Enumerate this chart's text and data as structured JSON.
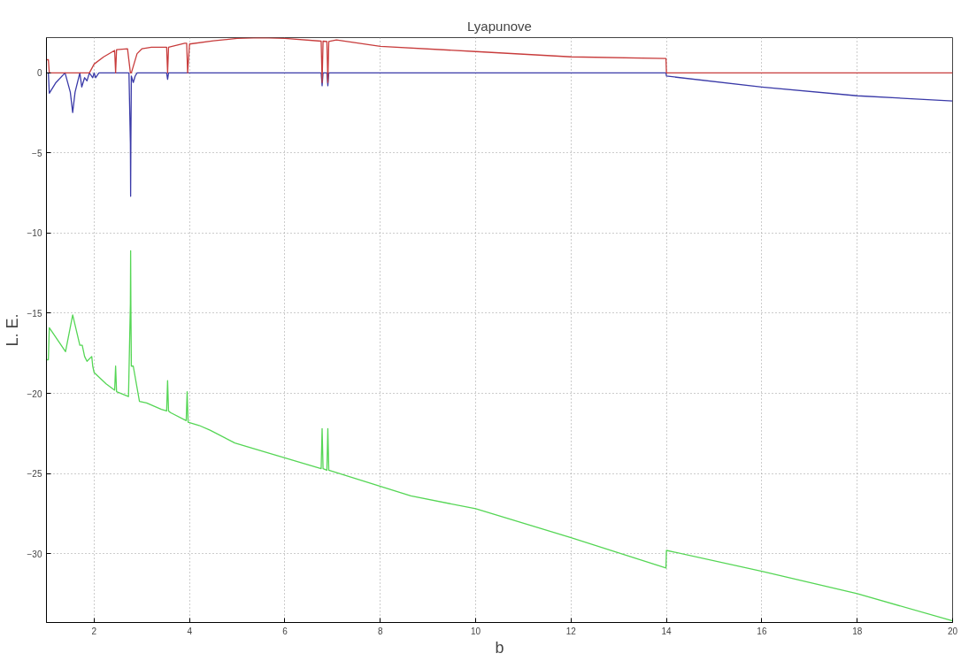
{
  "chart_data": {
    "type": "line",
    "title": "Lyapunove",
    "xlabel": "b",
    "ylabel": "L. E.",
    "xlim": [
      1,
      20
    ],
    "ylim": [
      -34.3,
      2.2
    ],
    "xticks": [
      2,
      4,
      6,
      8,
      10,
      12,
      14,
      16,
      18,
      20
    ],
    "yticks": [
      -30,
      -25,
      -20,
      -15,
      -10,
      -5,
      0
    ],
    "grid": true,
    "marker": "none",
    "line_style": "solid",
    "series": [
      {
        "color": "#3a3aa8",
        "x": [
          1,
          1.04,
          1.06,
          1.2,
          1.39,
          1.5,
          1.55,
          1.6,
          1.7,
          1.74,
          1.8,
          1.85,
          1.9,
          1.97,
          2.0,
          2.03,
          2.1,
          2.73,
          2.76,
          2.765,
          2.77,
          2.78,
          2.82,
          2.86,
          2.9,
          3.52,
          3.54,
          3.56,
          6.76,
          6.78,
          6.8,
          6.88,
          6.9,
          6.92,
          13.99,
          14.0,
          16,
          18,
          20
        ],
        "values": [
          0,
          0,
          -1.27,
          -0.6,
          0,
          -1.2,
          -2.47,
          -1.2,
          0,
          -0.88,
          -0.3,
          -0.5,
          0,
          -0.3,
          0,
          -0.3,
          0,
          0,
          -4.4,
          -7.7,
          -4.4,
          -0.2,
          -0.6,
          -0.2,
          0,
          0,
          -0.4,
          0,
          0,
          -0.8,
          0,
          0,
          -0.8,
          0,
          0,
          -0.2,
          -0.88,
          -1.43,
          -1.75
        ]
      },
      {
        "color": "#c83c3c",
        "x": [
          1,
          1.04,
          1.06,
          1.9,
          2.0,
          2.2,
          2.43,
          2.45,
          2.47,
          2.7,
          2.76,
          2.78,
          2.9,
          3.0,
          3.2,
          3.52,
          3.54,
          3.56,
          3.9,
          3.94,
          3.96,
          4.0,
          4.5,
          5.0,
          5.5,
          6.0,
          6.76,
          6.78,
          6.8,
          6.88,
          6.9,
          6.92,
          7.08,
          8,
          10,
          12,
          13.99,
          14.0,
          20
        ],
        "values": [
          0.82,
          0.82,
          0,
          0,
          0.55,
          1.0,
          1.4,
          0,
          1.45,
          1.5,
          0,
          0,
          1.2,
          1.5,
          1.6,
          1.6,
          0,
          1.6,
          1.85,
          1.85,
          0,
          1.8,
          2.0,
          2.15,
          2.2,
          2.15,
          1.98,
          -0.6,
          1.98,
          1.96,
          -0.6,
          1.96,
          2.05,
          1.65,
          1.33,
          1.0,
          0.9,
          0,
          0
        ]
      },
      {
        "color": "#55d655",
        "x": [
          1,
          1.04,
          1.06,
          1.4,
          1.55,
          1.7,
          1.75,
          1.8,
          1.85,
          1.95,
          1.97,
          2.0,
          2.25,
          2.43,
          2.45,
          2.47,
          2.72,
          2.76,
          2.765,
          2.77,
          2.78,
          2.82,
          2.95,
          3.1,
          3.41,
          3.52,
          3.54,
          3.56,
          3.6,
          3.93,
          3.95,
          3.97,
          4.2,
          4.43,
          4.95,
          6.76,
          6.78,
          6.8,
          6.88,
          6.9,
          6.92,
          8.64,
          10,
          12,
          13.99,
          14.0,
          16,
          18,
          20
        ],
        "values": [
          -17.9,
          -17.9,
          -15.9,
          -17.4,
          -15.1,
          -17.0,
          -17.0,
          -17.7,
          -18.0,
          -17.7,
          -18.3,
          -18.7,
          -19.4,
          -19.8,
          -18.3,
          -19.9,
          -20.2,
          -14.4,
          -11.1,
          -14.4,
          -18.3,
          -18.3,
          -20.5,
          -20.6,
          -21.0,
          -21.1,
          -19.2,
          -21.1,
          -21.2,
          -21.7,
          -19.9,
          -21.8,
          -22.0,
          -22.3,
          -23.1,
          -24.7,
          -22.2,
          -24.7,
          -24.8,
          -22.2,
          -24.8,
          -26.4,
          -27.2,
          -29.0,
          -30.9,
          -29.8,
          -31.1,
          -32.5,
          -34.2
        ]
      }
    ]
  }
}
